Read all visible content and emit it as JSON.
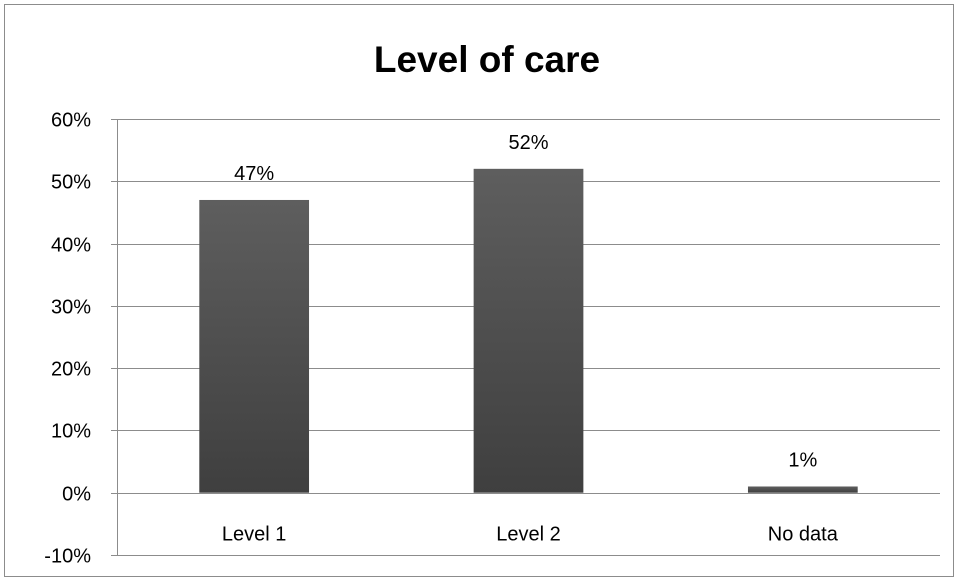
{
  "chart_data": {
    "type": "bar",
    "title": "Level of care",
    "xlabel": "",
    "ylabel": "",
    "categories": [
      "Level 1",
      "Level 2",
      "No data"
    ],
    "values": [
      47,
      52,
      1
    ],
    "data_labels": [
      "47%",
      "52%",
      "1%"
    ],
    "ylim": [
      -10,
      60
    ],
    "yticks": [
      60,
      50,
      40,
      30,
      20,
      10,
      0,
      -10
    ],
    "ytick_labels": [
      "60%",
      "50%",
      "40%",
      "30%",
      "20%",
      "10%",
      "0%",
      "-10%"
    ],
    "grid": true,
    "legend": "none",
    "bar_color": "#595959",
    "bar_color_dark": "#3f3f3f",
    "grid_color": "#8c8c8c"
  }
}
